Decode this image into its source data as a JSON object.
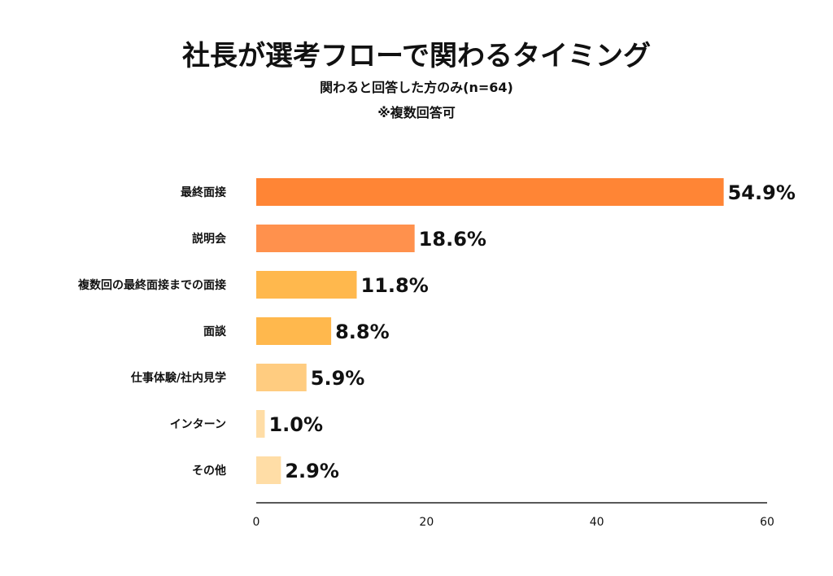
{
  "title": "社長が選考フローで関わるタイミング",
  "subtitle": "関わると回答した方のみ(n=64)",
  "note": "※複数回答可",
  "chart_data": {
    "type": "bar",
    "orientation": "horizontal",
    "categories": [
      "最終面接",
      "説明会",
      "複数回の最終面接までの面接",
      "面談",
      "仕事体験/社内見学",
      "インターン",
      "その他"
    ],
    "values": [
      54.9,
      18.6,
      11.8,
      8.8,
      5.9,
      1.0,
      2.9
    ],
    "value_labels": [
      "54.9%",
      "18.6%",
      "11.8%",
      "8.8%",
      "5.9%",
      "1.0%",
      "2.9%"
    ],
    "colors": [
      "#FF8535",
      "#FF914D",
      "#FFB84D",
      "#FFB84D",
      "#FFCC80",
      "#FFDDA6",
      "#FFDDA6"
    ],
    "xlim": [
      0,
      60
    ],
    "xticks": [
      0,
      20,
      40,
      60
    ],
    "grid": false,
    "legend": "none"
  }
}
